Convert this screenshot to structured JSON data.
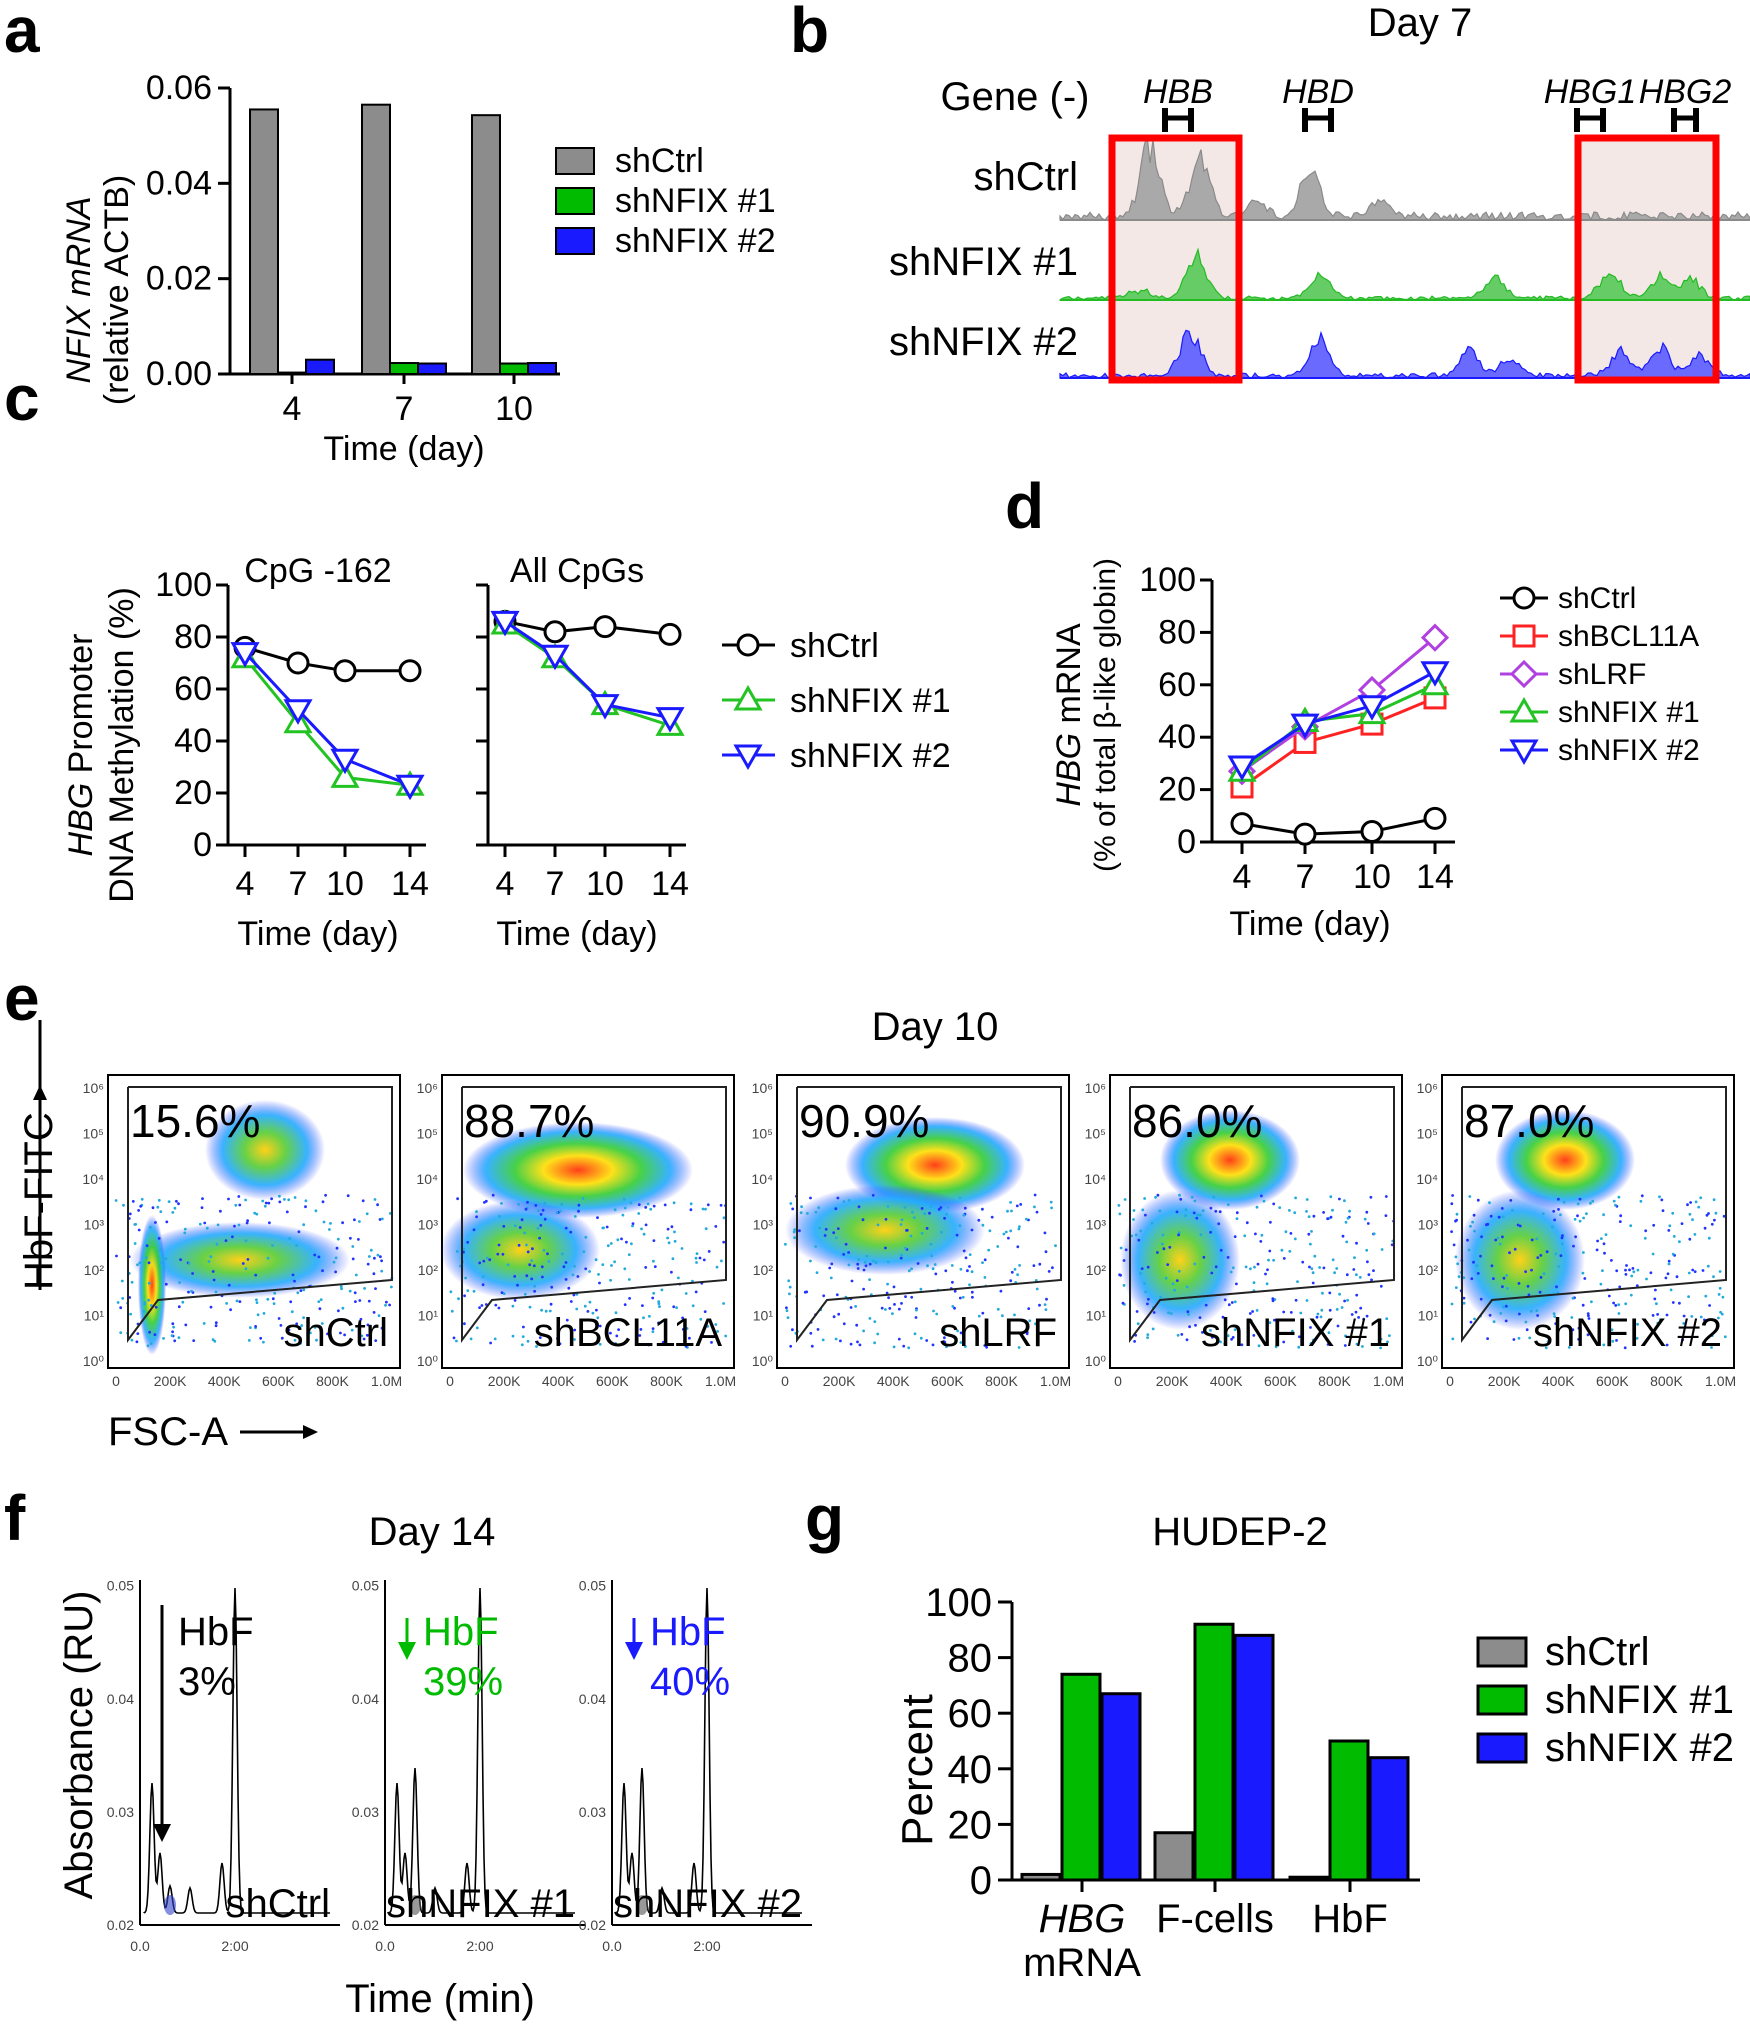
{
  "colors": {
    "gray": "#8c8c8c",
    "green": "#00bb00",
    "blue": "#1a1aff",
    "red": "#ff2222",
    "purple": "#b040e0",
    "lightgreen": "#22c322"
  },
  "panel_labels": [
    "a",
    "b",
    "c",
    "d",
    "e",
    "f",
    "g"
  ],
  "chart_data": [
    {
      "id": "a",
      "type": "bar",
      "ylabel_line1": "NFIX mRNA",
      "ylabel_line2": "(relative ACTB)",
      "xlabel": "Time (day)",
      "categories": [
        "4",
        "7",
        "10"
      ],
      "yticks": [
        "0.00",
        "0.02",
        "0.04",
        "0.06"
      ],
      "ylim": [
        0,
        0.06
      ],
      "series": [
        {
          "name": "shCtrl",
          "values": [
            0.0555,
            0.0565,
            0.0543
          ]
        },
        {
          "name": "shNFIX #1",
          "values": [
            0.0003,
            0.0023,
            0.0022
          ]
        },
        {
          "name": "shNFIX #2",
          "values": [
            0.003,
            0.0022,
            0.0023
          ]
        }
      ]
    },
    {
      "id": "b",
      "type": "genome-track",
      "title": "Day 7",
      "gene_row_label": "Gene (-)",
      "genes": [
        "HBB",
        "HBD",
        "HBG1",
        "HBG2"
      ],
      "tracks": [
        "shCtrl",
        "shNFIX #1",
        "shNFIX #2"
      ]
    },
    {
      "id": "c",
      "type": "line",
      "ylabel_line1": "HBG Promoter",
      "ylabel_line2": "DNA Methylation (%)",
      "xlabel": "Time (day)",
      "x": [
        4,
        7,
        10,
        14
      ],
      "xticks": [
        "4",
        "7",
        "10",
        "14"
      ],
      "yticks": [
        "0",
        "20",
        "40",
        "60",
        "80",
        "100"
      ],
      "ylim": [
        0,
        100
      ],
      "subplots": [
        {
          "title": "CpG -162",
          "series": [
            {
              "name": "shCtrl",
              "values": [
                76,
                70,
                67,
                67
              ]
            },
            {
              "name": "shNFIX #1",
              "values": [
                72,
                47,
                26,
                23
              ]
            },
            {
              "name": "shNFIX #2",
              "values": [
                74,
                52,
                33,
                23
              ]
            }
          ]
        },
        {
          "title": "All CpGs",
          "series": [
            {
              "name": "shCtrl",
              "values": [
                86,
                82,
                84,
                81
              ]
            },
            {
              "name": "shNFIX #1",
              "values": [
                85,
                72,
                54,
                46
              ]
            },
            {
              "name": "shNFIX #2",
              "values": [
                86,
                73,
                54,
                49
              ]
            }
          ]
        }
      ]
    },
    {
      "id": "d",
      "type": "line",
      "ylabel_line1": "HBG mRNA",
      "ylabel_line2": "(% of total β-like globin)",
      "xlabel": "Time (day)",
      "x": [
        4,
        7,
        10,
        14
      ],
      "xticks": [
        "4",
        "7",
        "10",
        "14"
      ],
      "yticks": [
        "0",
        "20",
        "40",
        "60",
        "80",
        "100"
      ],
      "ylim": [
        0,
        100
      ],
      "series": [
        {
          "name": "shCtrl",
          "values": [
            7,
            3,
            4,
            9
          ]
        },
        {
          "name": "shBCL11A",
          "values": [
            21,
            38,
            45,
            55
          ]
        },
        {
          "name": "shLRF",
          "values": [
            27,
            44,
            58,
            78
          ]
        },
        {
          "name": "shNFIX #1",
          "values": [
            27,
            46,
            49,
            60
          ]
        },
        {
          "name": "shNFIX #2",
          "values": [
            29,
            45,
            52,
            65
          ]
        }
      ]
    },
    {
      "id": "e",
      "type": "scatter",
      "title": "Day 10",
      "ylabel": "HbF-FITC",
      "xlabel": "FSC-A",
      "xticks": [
        "0",
        "200K",
        "400K",
        "600K",
        "800K",
        "1.0M"
      ],
      "yticks": [
        "10⁰",
        "10¹",
        "10²",
        "10³",
        "10⁴",
        "10⁵",
        "10⁶"
      ],
      "panels": [
        {
          "name": "shCtrl",
          "percent": "15.6%"
        },
        {
          "name": "shBCL11A",
          "percent": "88.7%"
        },
        {
          "name": "shLRF",
          "percent": "90.9%"
        },
        {
          "name": "shNFIX #1",
          "percent": "86.0%"
        },
        {
          "name": "shNFIX #2",
          "percent": "87.0%"
        }
      ]
    },
    {
      "id": "f",
      "type": "line",
      "title": "Day 14",
      "ylabel": "Absorbance (RU)",
      "xlabel": "Time (min)",
      "yticks": [
        "0.02",
        "0.03",
        "0.04",
        "0.05"
      ],
      "xticks": [
        "0.0",
        "2:00"
      ],
      "panels": [
        {
          "name": "shCtrl",
          "label": "HbF",
          "percent": "3%"
        },
        {
          "name": "shNFIX #1",
          "label": "HbF",
          "percent": "39%"
        },
        {
          "name": "shNFIX #2",
          "label": "HbF",
          "percent": "40%"
        }
      ]
    },
    {
      "id": "g",
      "type": "bar",
      "title": "HUDEP-2",
      "ylabel": "Percent",
      "categories": [
        "HBG mRNA",
        "F-cells",
        "HbF"
      ],
      "cat_line1": [
        "HBG",
        "F-cells",
        "HbF"
      ],
      "cat_line2": [
        "mRNA",
        "",
        ""
      ],
      "yticks": [
        "0",
        "20",
        "40",
        "60",
        "80",
        "100"
      ],
      "ylim": [
        0,
        100
      ],
      "series": [
        {
          "name": "shCtrl",
          "values": [
            2,
            17,
            1
          ]
        },
        {
          "name": "shNFIX #1",
          "values": [
            74,
            92,
            50
          ]
        },
        {
          "name": "shNFIX #2",
          "values": [
            67,
            88,
            44
          ]
        }
      ]
    }
  ]
}
